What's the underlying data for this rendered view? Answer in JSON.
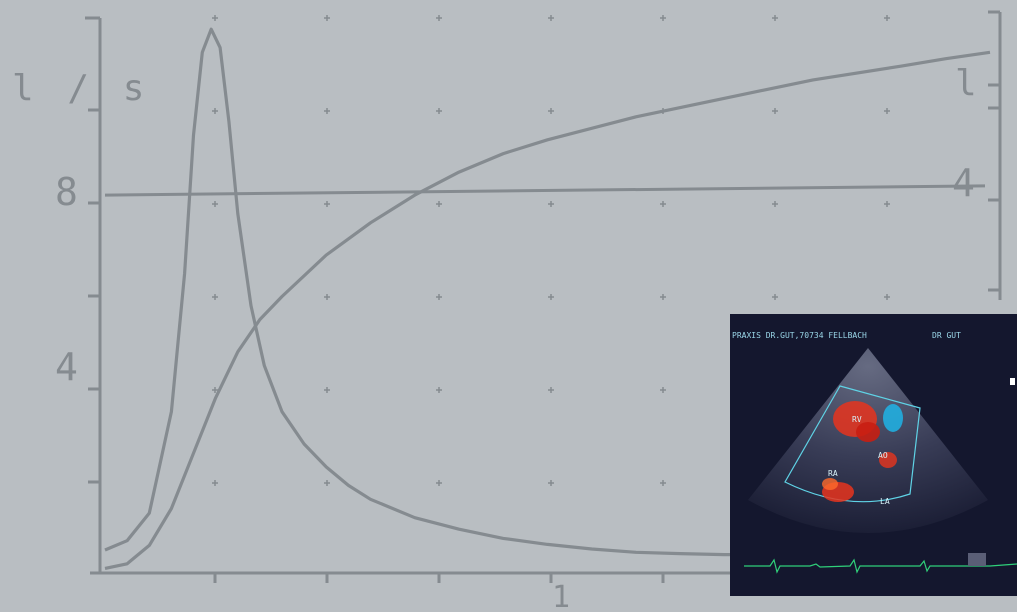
{
  "chart_data": {
    "type": "line",
    "left_axis": {
      "unit": "l / s",
      "ticks": [
        "8",
        "4"
      ],
      "range": [
        0,
        12
      ]
    },
    "right_axis": {
      "unit": "l",
      "ticks": [
        "4"
      ],
      "range": [
        0,
        6
      ]
    },
    "x_axis": {
      "ticks": [
        "1"
      ],
      "range": [
        0,
        2
      ]
    },
    "reference_line": {
      "left": 8.2,
      "right": 4.2
    },
    "series": [
      {
        "axis": "left",
        "x": [
          0.0,
          0.05,
          0.1,
          0.15,
          0.18,
          0.2,
          0.22,
          0.24,
          0.26,
          0.28,
          0.3,
          0.33,
          0.36,
          0.4,
          0.45,
          0.5,
          0.55,
          0.6,
          0.7,
          0.8,
          0.9,
          1.0,
          1.1,
          1.2,
          1.3,
          1.4,
          1.5
        ],
        "y": [
          0.5,
          0.7,
          1.3,
          3.5,
          6.5,
          9.5,
          11.3,
          11.8,
          11.4,
          9.8,
          7.8,
          5.8,
          4.5,
          3.5,
          2.8,
          2.3,
          1.9,
          1.6,
          1.2,
          0.95,
          0.75,
          0.62,
          0.52,
          0.45,
          0.42,
          0.4,
          0.4
        ]
      },
      {
        "axis": "right",
        "x": [
          0.0,
          0.05,
          0.1,
          0.15,
          0.2,
          0.25,
          0.3,
          0.35,
          0.4,
          0.5,
          0.6,
          0.7,
          0.8,
          0.9,
          1.0,
          1.2,
          1.4,
          1.6,
          1.8,
          1.9,
          2.0
        ],
        "y": [
          0.05,
          0.1,
          0.3,
          0.7,
          1.3,
          1.9,
          2.4,
          2.75,
          3.0,
          3.45,
          3.8,
          4.1,
          4.35,
          4.55,
          4.7,
          4.95,
          5.15,
          5.35,
          5.5,
          5.58,
          5.65
        ]
      }
    ]
  },
  "inset": {
    "header": "PRAXIS DR.GUT,70734 FELLBACH",
    "doctor": "DR GUT",
    "labels": [
      "RV",
      "AO",
      "RA",
      "LA"
    ]
  },
  "colors": {
    "background": "#b9bec2",
    "ink": "#858b90",
    "inset_background": "#14172e",
    "inset_text": "#9ad6e8",
    "doppler_red": "#e8341d",
    "doppler_blue": "#1fb4e6",
    "ecg": "#2fd07a"
  }
}
